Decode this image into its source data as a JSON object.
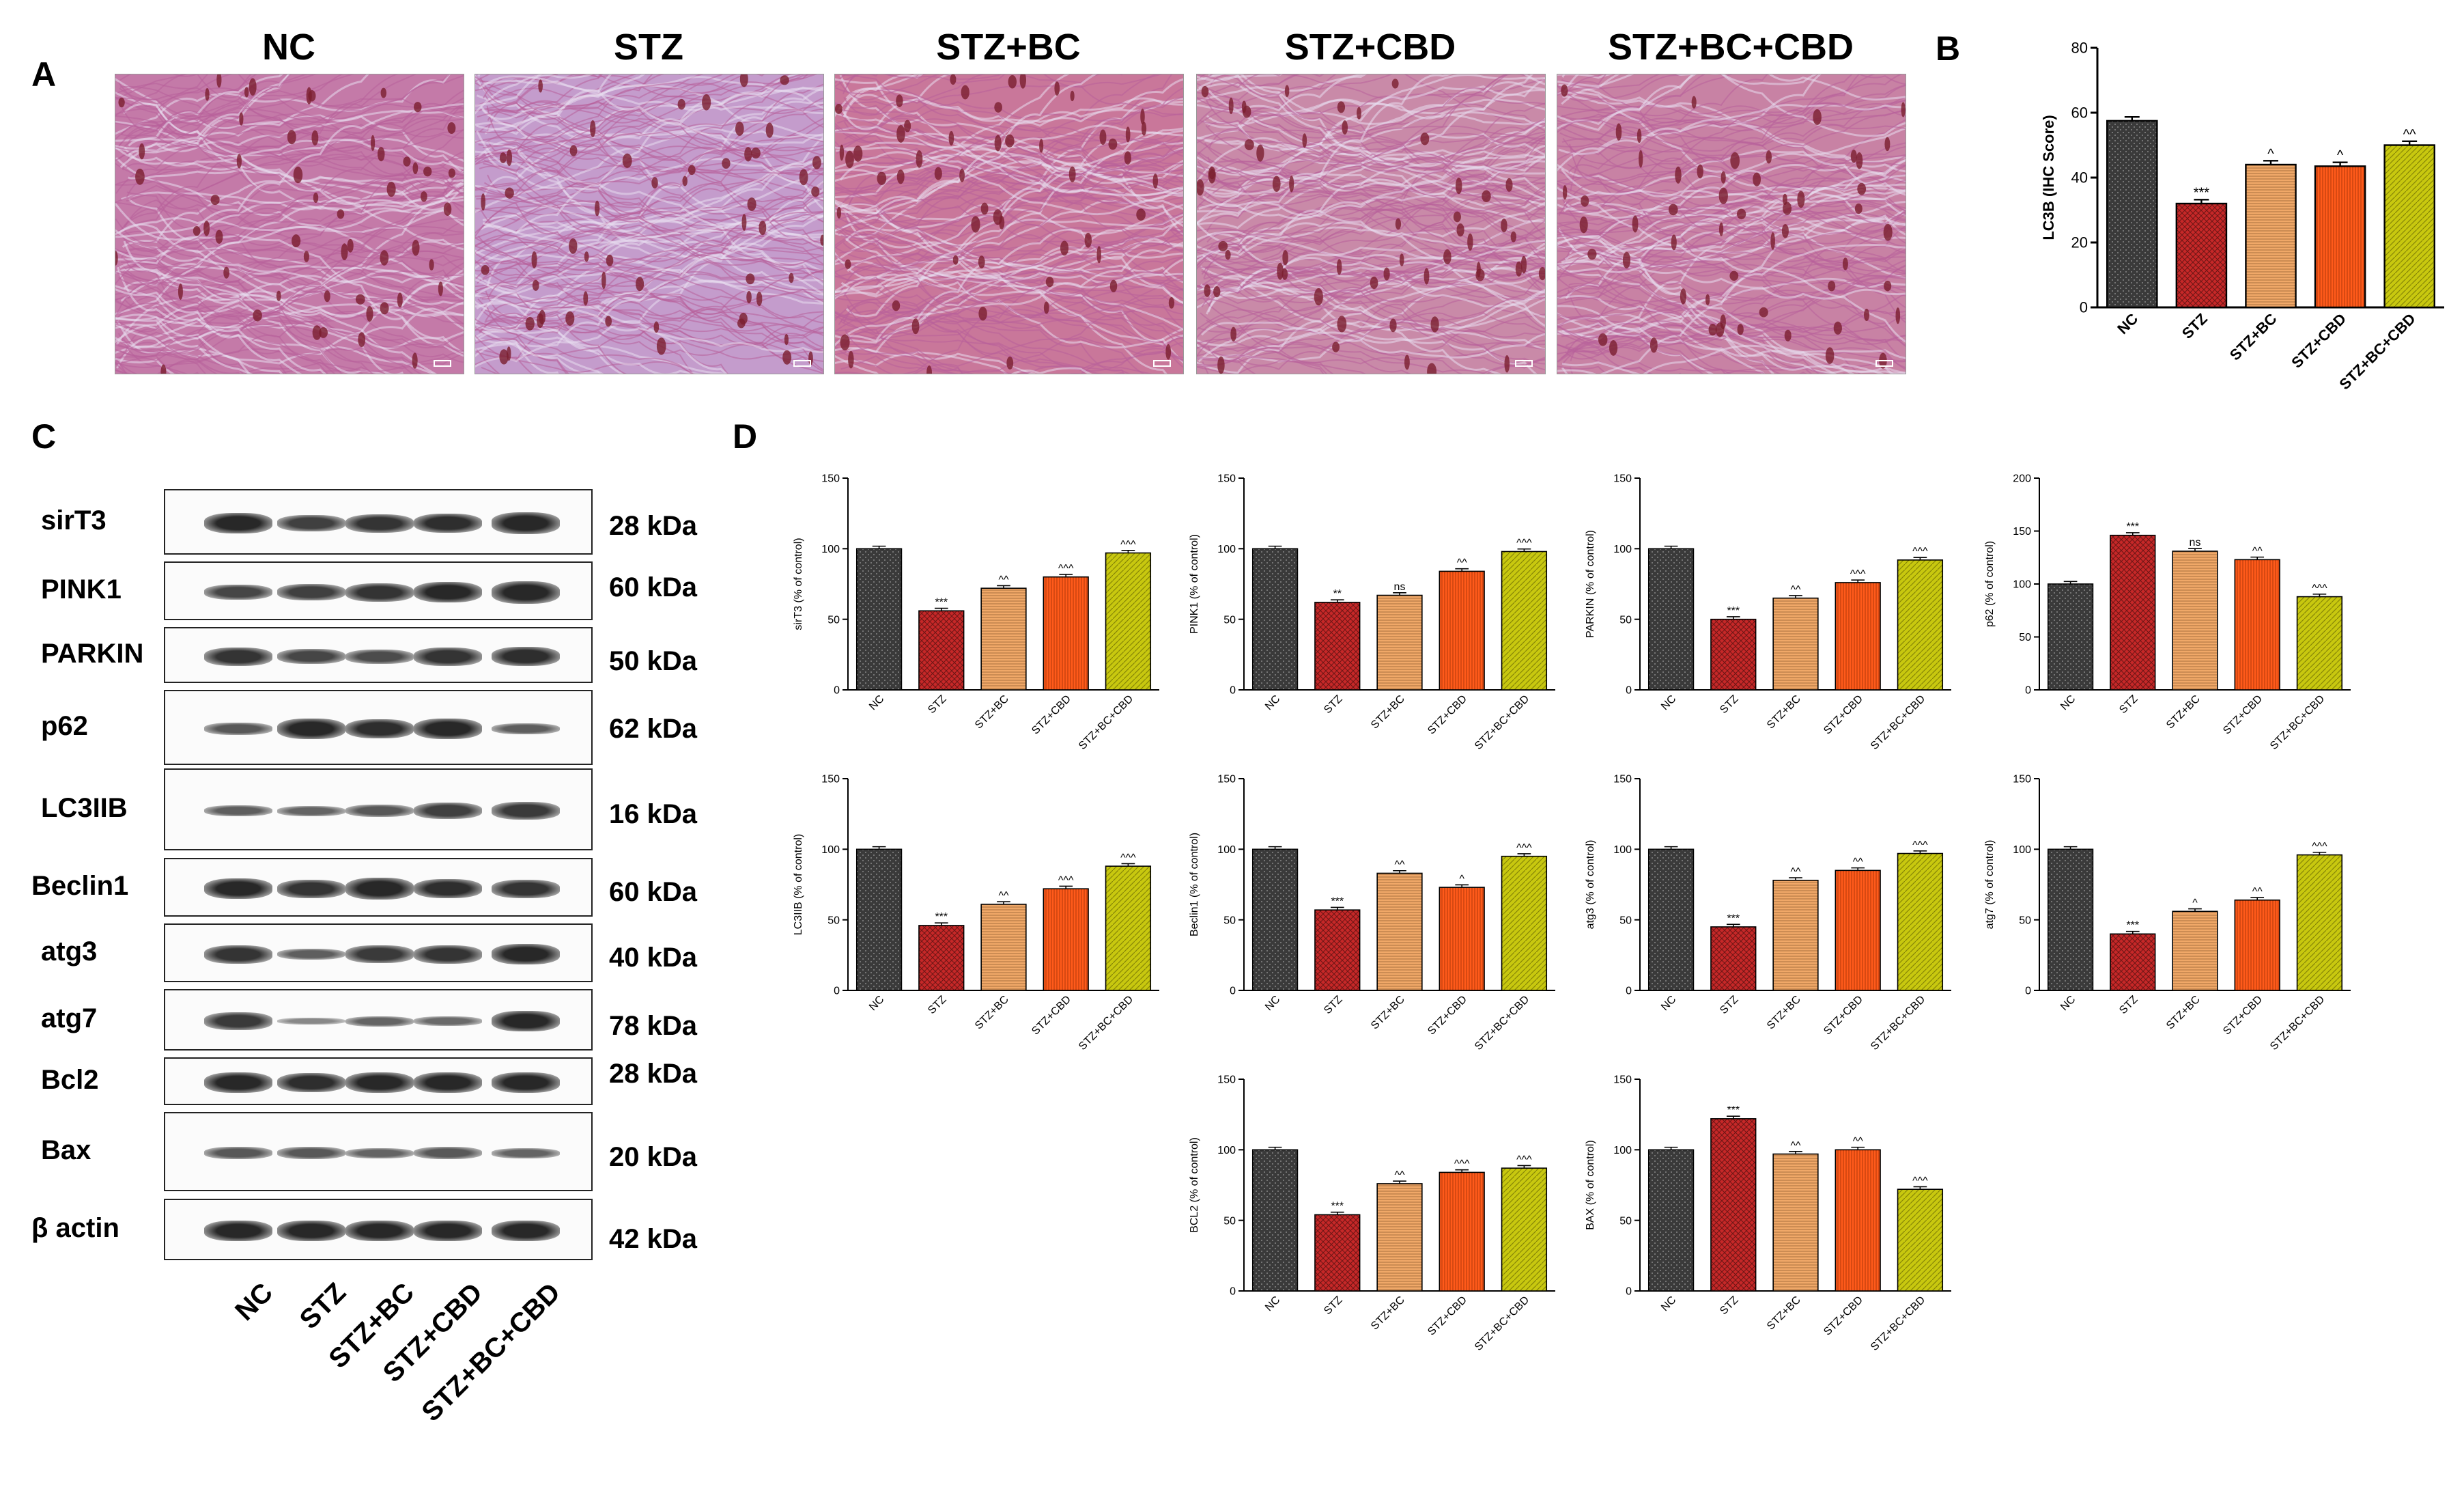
{
  "panels": {
    "A": "A",
    "B": "B",
    "C": "C",
    "D": "D"
  },
  "ihc": {
    "titles": [
      "NC",
      "STZ",
      "STZ+BC",
      "STZ+CBD",
      "STZ+BC+CBD"
    ]
  },
  "groups": [
    "NC",
    "STZ",
    "STZ+BC",
    "STZ+CBD",
    "STZ+BC+CBD"
  ],
  "colors": {
    "NC": "#3a3a3a",
    "STZ": "#c62828",
    "STZ+BC": "#f0a868",
    "STZ+CBD": "#ff5a1a",
    "STZ+BC+CBD": "#c8c80f"
  },
  "blot": {
    "rows": [
      {
        "label": "sirT3",
        "kda": "28 kDa"
      },
      {
        "label": "PINK1",
        "kda": "60 kDa"
      },
      {
        "label": "PARKIN",
        "kda": "50 kDa"
      },
      {
        "label": "p62",
        "kda": "62 kDa"
      },
      {
        "label": "LC3IIB",
        "kda": "16 kDa"
      },
      {
        "label": "Beclin1",
        "kda": "60 kDa"
      },
      {
        "label": "atg3",
        "kda": "40 kDa"
      },
      {
        "label": "atg7",
        "kda": "78 kDa"
      },
      {
        "label": "Bcl2",
        "kda": "28 kDa"
      },
      {
        "label": "Bax",
        "kda": "20 kDa"
      },
      {
        "label": "β actin",
        "kda": "42 kDa"
      }
    ],
    "lanes": [
      "NC",
      "STZ",
      "STZ+BC",
      "STZ+CBD",
      "STZ+BC+CBD"
    ]
  },
  "chart_data": [
    {
      "id": "B",
      "type": "bar",
      "ylabel": "LC3B (IHC Score)",
      "ylim": [
        0,
        80
      ],
      "yticks": [
        0,
        20,
        40,
        60,
        80
      ],
      "categories": [
        "NC",
        "STZ",
        "STZ+BC",
        "STZ+CBD",
        "STZ+BC+CBD"
      ],
      "values": [
        57.5,
        32,
        44,
        43.5,
        50
      ],
      "sig": [
        "",
        "***",
        "^",
        "^",
        "^^"
      ]
    },
    {
      "id": "sirT3",
      "type": "bar",
      "ylabel": "sirT3 (% of control)",
      "ylim": [
        0,
        150
      ],
      "yticks": [
        0,
        50,
        100,
        150
      ],
      "categories": [
        "NC",
        "STZ",
        "STZ+BC",
        "STZ+CBD",
        "STZ+BC+CBD"
      ],
      "values": [
        100,
        56,
        72,
        80,
        97
      ],
      "sig": [
        "",
        "***",
        "^^",
        "^^^",
        "^^^"
      ]
    },
    {
      "id": "PINK1",
      "type": "bar",
      "ylabel": "PINK1 (% of control)",
      "ylim": [
        0,
        150
      ],
      "yticks": [
        0,
        50,
        100,
        150
      ],
      "categories": [
        "NC",
        "STZ",
        "STZ+BC",
        "STZ+CBD",
        "STZ+BC+CBD"
      ],
      "values": [
        100,
        62,
        67,
        84,
        98
      ],
      "sig": [
        "",
        "**",
        "ns",
        "^^",
        "^^^"
      ]
    },
    {
      "id": "PARKIN",
      "type": "bar",
      "ylabel": "PARKIN (% of control)",
      "ylim": [
        0,
        150
      ],
      "yticks": [
        0,
        50,
        100,
        150
      ],
      "categories": [
        "NC",
        "STZ",
        "STZ+BC",
        "STZ+CBD",
        "STZ+BC+CBD"
      ],
      "values": [
        100,
        50,
        65,
        76,
        92
      ],
      "sig": [
        "",
        "***",
        "^^",
        "^^^",
        "^^^"
      ]
    },
    {
      "id": "p62",
      "type": "bar",
      "ylabel": "p62 (% of control)",
      "ylim": [
        0,
        200
      ],
      "yticks": [
        0,
        50,
        100,
        150,
        200
      ],
      "categories": [
        "NC",
        "STZ",
        "STZ+BC",
        "STZ+CBD",
        "STZ+BC+CBD"
      ],
      "values": [
        100,
        146,
        131,
        123,
        88
      ],
      "sig": [
        "",
        "***",
        "ns",
        "^^",
        "^^^"
      ]
    },
    {
      "id": "LC3IIB",
      "type": "bar",
      "ylabel": "LC3IIB (% of control)",
      "ylim": [
        0,
        150
      ],
      "yticks": [
        0,
        50,
        100,
        150
      ],
      "categories": [
        "NC",
        "STZ",
        "STZ+BC",
        "STZ+CBD",
        "STZ+BC+CBD"
      ],
      "values": [
        100,
        46,
        61,
        72,
        88
      ],
      "sig": [
        "",
        "***",
        "^^",
        "^^^",
        "^^^"
      ]
    },
    {
      "id": "Beclin1",
      "type": "bar",
      "ylabel": "Beclin1 (% of control)",
      "ylim": [
        0,
        150
      ],
      "yticks": [
        0,
        50,
        100,
        150
      ],
      "categories": [
        "NC",
        "STZ",
        "STZ+BC",
        "STZ+CBD",
        "STZ+BC+CBD"
      ],
      "values": [
        100,
        57,
        83,
        73,
        95
      ],
      "sig": [
        "",
        "***",
        "^^",
        "^",
        "^^^"
      ]
    },
    {
      "id": "atg3",
      "type": "bar",
      "ylabel": "atg3 (% of control)",
      "ylim": [
        0,
        150
      ],
      "yticks": [
        0,
        50,
        100,
        150
      ],
      "categories": [
        "NC",
        "STZ",
        "STZ+BC",
        "STZ+CBD",
        "STZ+BC+CBD"
      ],
      "values": [
        100,
        45,
        78,
        85,
        97
      ],
      "sig": [
        "",
        "***",
        "^^",
        "^^",
        "^^^"
      ]
    },
    {
      "id": "atg7",
      "type": "bar",
      "ylabel": "atg7 (% of control)",
      "ylim": [
        0,
        150
      ],
      "yticks": [
        0,
        50,
        100,
        150
      ],
      "categories": [
        "NC",
        "STZ",
        "STZ+BC",
        "STZ+CBD",
        "STZ+BC+CBD"
      ],
      "values": [
        100,
        40,
        56,
        64,
        96
      ],
      "sig": [
        "",
        "***",
        "^",
        "^^",
        "^^^"
      ]
    },
    {
      "id": "BCL2",
      "type": "bar",
      "ylabel": "BCL2 (% of control)",
      "ylim": [
        0,
        150
      ],
      "yticks": [
        0,
        50,
        100,
        150
      ],
      "categories": [
        "NC",
        "STZ",
        "STZ+BC",
        "STZ+CBD",
        "STZ+BC+CBD"
      ],
      "values": [
        100,
        54,
        76,
        84,
        87
      ],
      "sig": [
        "",
        "***",
        "^^",
        "^^^",
        "^^^"
      ]
    },
    {
      "id": "BAX",
      "type": "bar",
      "ylabel": "BAX (% of control)",
      "ylim": [
        0,
        150
      ],
      "yticks": [
        0,
        50,
        100,
        150
      ],
      "categories": [
        "NC",
        "STZ",
        "STZ+BC",
        "STZ+CBD",
        "STZ+BC+CBD"
      ],
      "values": [
        100,
        122,
        97,
        100,
        72
      ],
      "sig": [
        "",
        "***",
        "^^",
        "^^",
        "^^^"
      ]
    }
  ]
}
